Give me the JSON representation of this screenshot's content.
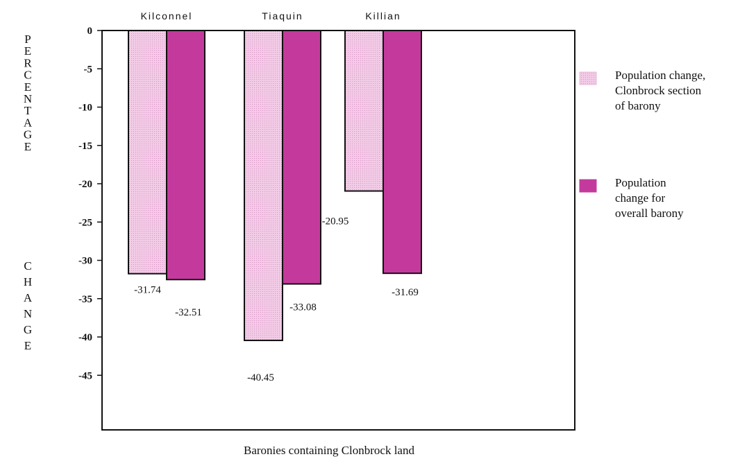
{
  "chart_data": {
    "type": "bar",
    "categories": [
      "Kilconnel",
      "Tiaquin",
      "Killian"
    ],
    "series": [
      {
        "name": "Population change, Clonbrock section of barony",
        "legend_lines": [
          "Population change,",
          "Clonbrock section",
          "of barony"
        ],
        "color": "#efc1e1",
        "values": [
          -31.74,
          -40.45,
          -20.95
        ],
        "labels": [
          "-31.74",
          "-40.45",
          "-20.95"
        ]
      },
      {
        "name": "Population change for overall barony",
        "legend_lines": [
          "Population",
          "change for",
          "overall barony"
        ],
        "color": "#c43a9c",
        "values": [
          -32.51,
          -33.08,
          -31.69
        ],
        "labels": [
          "-32.51",
          "-33.08",
          "-31.69"
        ]
      }
    ],
    "xlabel": "Baronies containing Clonbrock land",
    "ylabel": "PERCENTAGE CHANGE",
    "ylabel_words": [
      "PERCENTAGE",
      "CHANGE"
    ],
    "yticks": [
      0,
      -5,
      -10,
      -15,
      -20,
      -25,
      -30,
      -35,
      -40,
      -45
    ],
    "ytick_labels": [
      "0",
      "-5",
      "-10",
      "-15",
      "-20",
      "-25",
      "-30",
      "-35",
      "-40",
      "-45"
    ],
    "ylim": [
      -51,
      0
    ],
    "grid": false,
    "legend_position": "right"
  }
}
